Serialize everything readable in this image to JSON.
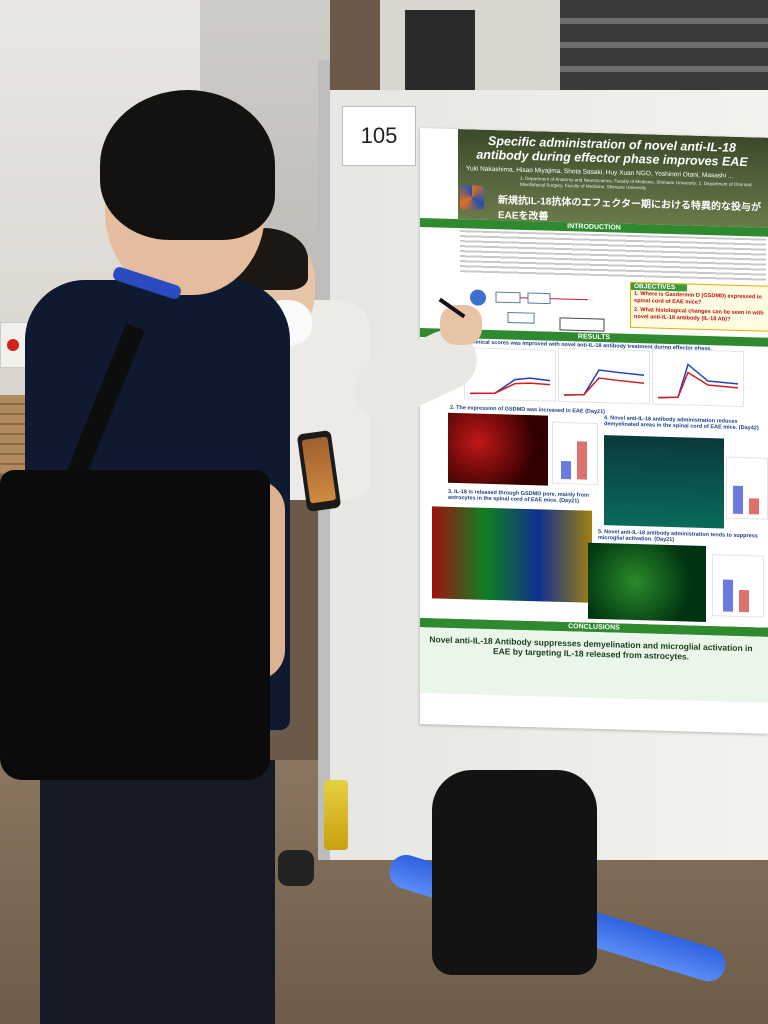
{
  "poster_number": "105",
  "poster": {
    "title": "Specific administration of novel anti-IL-18 antibody during effector phase improves EAE",
    "authors": "Yuki Nakashima, Hisao Miyajima, Shota Sasaki, Huy Xuan NGO, Yoshinori Otani, Masashi ...",
    "affiliations": "1. Department of Anatomy and Neuroscience, Faculty of Medicine, Shimane University; 2. Department of Oral and Maxillofacial Surgery, Faculty of Medicine, Shimane University",
    "japanese_title": "新規抗IL-18抗体のエフェクター期における特異的な投与がEAEを改善",
    "introduction_label": "INTRODUCTION",
    "objectives_label": "OBJECTIVES",
    "objective_1": "1. Where is Gasdermin D (GSDMD) expressed in spinal cord of EAE mice?",
    "objective_2": "2. What histological changes can be seen in with novel anti-IL-18 antibody (IL-18 Ab)?",
    "results_label": "RESULTS",
    "result_1": "1. Clinical scores was improved with novel anti-IL-18 antibody treatment during effector phase.",
    "result_2": "2. The expression of GSDMD was increased in EAE (Day21)",
    "result_3": "3. IL-18 is released through GSDMD pore, mainly from astrocytes in the spinal cord of EAE mice. (Day21)",
    "result_4": "4. Novel anti-IL-18 antibody administration reduces demyelinated areas in the spinal cord of EAE mice. (Day42)",
    "result_5": "5. Novel anti-IL-18 antibody administration tends to suppress microglial activation. (Day21)",
    "conclusions_label": "CONCLUSIONS",
    "conclusion_text": "Novel anti-IL-18 Antibody suppresses demyelination and microglial activation in EAE by targeting IL-18 released from astrocytes."
  }
}
